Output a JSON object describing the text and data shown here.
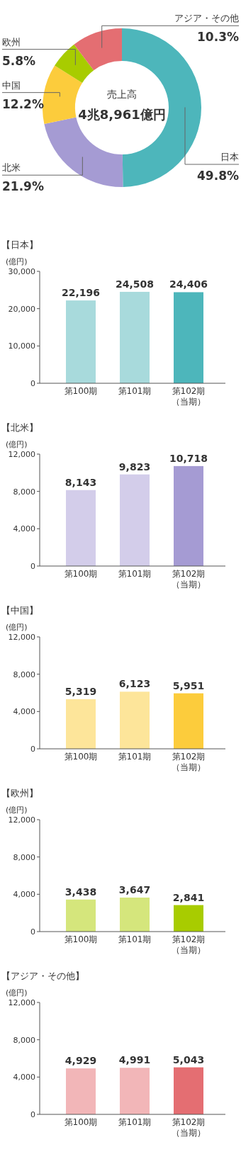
{
  "chart_data": [
    {
      "type": "donut",
      "categories": [
        "日本",
        "北米",
        "中国",
        "欧州",
        "アジア・その他"
      ],
      "values": [
        49.8,
        21.9,
        12.2,
        5.8,
        10.3
      ],
      "colors": [
        "#4db6bb",
        "#a59bd3",
        "#fccc3c",
        "#a8cc00",
        "#e46e72"
      ],
      "value_labels": [
        "49.8%",
        "21.9%",
        "12.2%",
        "5.8%",
        "10.3%"
      ],
      "annotations": [
        "売上高",
        "4兆8,961億円"
      ]
    },
    {
      "type": "bar",
      "title": "【日本】",
      "ylabel": "(億円)",
      "categories": [
        "第100期",
        "第101期",
        "第102期（当期）"
      ],
      "values": [
        22196,
        24508,
        24406
      ],
      "colors": [
        "#a8dadc",
        "#a8dadc",
        "#4db6bb"
      ],
      "value_labels": [
        "22,196",
        "24,508",
        "24,406"
      ],
      "ylim": [
        0,
        30000
      ],
      "yticks": [
        {
          "value": 0,
          "label": "0"
        },
        {
          "value": 10000,
          "label": "10,000"
        },
        {
          "value": 20000,
          "label": "20,000"
        },
        {
          "value": 30000,
          "label": "30,000"
        }
      ]
    },
    {
      "type": "bar",
      "title": "【北米】",
      "ylabel": "(億円)",
      "categories": [
        "第100期",
        "第101期",
        "第102期（当期）"
      ],
      "values": [
        8143,
        9823,
        10718
      ],
      "colors": [
        "#d3cdea",
        "#d3cdea",
        "#a59bd3"
      ],
      "value_labels": [
        "8,143",
        "9,823",
        "10,718"
      ],
      "ylim": [
        0,
        12000
      ],
      "yticks": [
        {
          "value": 0,
          "label": "0"
        },
        {
          "value": 4000,
          "label": "4,000"
        },
        {
          "value": 8000,
          "label": "8,000"
        },
        {
          "value": 12000,
          "label": "12,000"
        }
      ]
    },
    {
      "type": "bar",
      "title": "【中国】",
      "ylabel": "(億円)",
      "categories": [
        "第100期",
        "第101期",
        "第102期（当期）"
      ],
      "values": [
        5319,
        6123,
        5951
      ],
      "colors": [
        "#fde59a",
        "#fde59a",
        "#fccc3c"
      ],
      "value_labels": [
        "5,319",
        "6,123",
        "5,951"
      ],
      "ylim": [
        0,
        12000
      ],
      "yticks": [
        {
          "value": 0,
          "label": "0"
        },
        {
          "value": 4000,
          "label": "4,000"
        },
        {
          "value": 8000,
          "label": "8,000"
        },
        {
          "value": 12000,
          "label": "12,000"
        }
      ]
    },
    {
      "type": "bar",
      "title": "【欧州】",
      "ylabel": "(億円)",
      "categories": [
        "第100期",
        "第101期",
        "第102期（当期）"
      ],
      "values": [
        3438,
        3647,
        2841
      ],
      "colors": [
        "#d5e67c",
        "#d5e67c",
        "#a8cc00"
      ],
      "value_labels": [
        "3,438",
        "3,647",
        "2,841"
      ],
      "ylim": [
        0,
        12000
      ],
      "yticks": [
        {
          "value": 0,
          "label": "0"
        },
        {
          "value": 4000,
          "label": "4,000"
        },
        {
          "value": 8000,
          "label": "8,000"
        },
        {
          "value": 12000,
          "label": "12,000"
        }
      ]
    },
    {
      "type": "bar",
      "title": "【アジア・その他】",
      "ylabel": "(億円)",
      "categories": [
        "第100期",
        "第101期",
        "第102期（当期）"
      ],
      "values": [
        4929,
        4991,
        5043
      ],
      "colors": [
        "#f2b6b8",
        "#f2b6b8",
        "#e46e72"
      ],
      "value_labels": [
        "4,929",
        "4,991",
        "5,043"
      ],
      "ylim": [
        0,
        12000
      ],
      "yticks": [
        {
          "value": 0,
          "label": "0"
        },
        {
          "value": 4000,
          "label": "4,000"
        },
        {
          "value": 8000,
          "label": "8,000"
        },
        {
          "value": 12000,
          "label": "12,000"
        }
      ]
    }
  ]
}
